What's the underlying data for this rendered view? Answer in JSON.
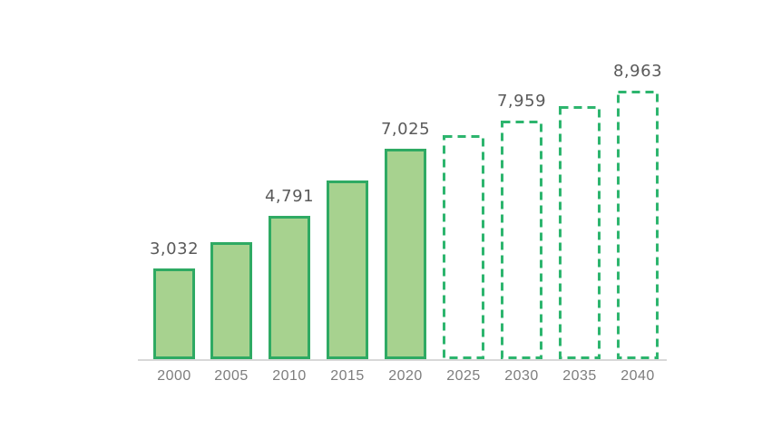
{
  "chart_data": {
    "type": "bar",
    "title": "",
    "xlabel": "",
    "ylabel": "",
    "grid": false,
    "legend": false,
    "ylim": [
      0,
      9600
    ],
    "categories": [
      "2000",
      "2005",
      "2010",
      "2015",
      "2020",
      "2025",
      "2030",
      "2035",
      "2040"
    ],
    "values": [
      3032,
      3910,
      4791,
      5960,
      7025,
      7480,
      7959,
      8450,
      8963
    ],
    "data_labels": [
      "3,032",
      "",
      "4,791",
      "",
      "7,025",
      "",
      "7,959",
      "",
      "8,963"
    ],
    "bar_styles": [
      "solid",
      "solid",
      "solid",
      "solid",
      "solid",
      "dashed",
      "dashed",
      "dashed",
      "dashed"
    ]
  },
  "colors": {
    "background": "#ffffff",
    "solid_bar_fill": "#a7d28f",
    "solid_bar_border": "#2faa63",
    "dashed_bar_border": "#2db56e",
    "axis_line": "#d8d8d8",
    "data_label_text": "#5a5a5a",
    "tick_label_text": "#7d7d7d"
  }
}
